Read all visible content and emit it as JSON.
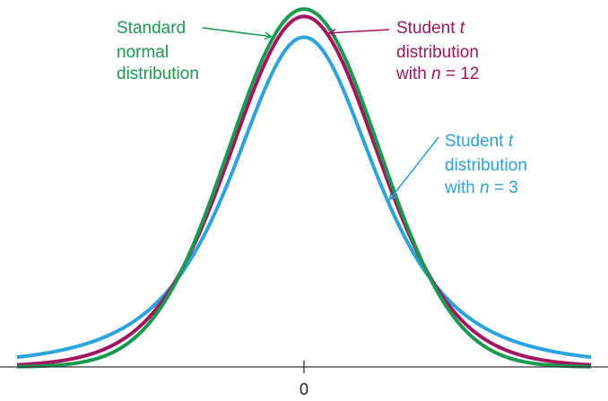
{
  "chart_data": {
    "type": "line",
    "x_ticks": [
      {
        "value": 0,
        "label": "0"
      }
    ],
    "xlim": [
      -3.8,
      3.8
    ],
    "grid": false,
    "legend": "direct-labels-with-arrows",
    "series": [
      {
        "key": "standard_normal",
        "name": [
          "Standard",
          "normal",
          "distribution"
        ],
        "kind": "normal",
        "color": "#1a9a4f",
        "arrow_x": -0.4
      },
      {
        "key": "t12",
        "name": [
          "Student t",
          "distribution",
          "with n = 12"
        ],
        "kind": "t",
        "df": 12,
        "color": "#a3155f",
        "arrow_x": 0.3
      },
      {
        "key": "t3",
        "name": [
          "Student t",
          "distribution",
          "with n = 3"
        ],
        "kind": "t",
        "df": 3,
        "color": "#2aa3e0",
        "arrow_x": 1.1
      }
    ]
  }
}
